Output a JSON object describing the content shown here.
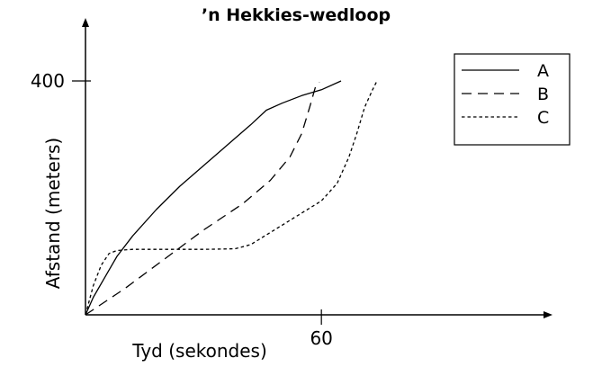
{
  "chart_data": {
    "type": "line",
    "title": "’n Hekkies-wedloop",
    "xlabel": "Tyd (sekondes)",
    "ylabel": "Afstand (meters)",
    "xlim": [
      0,
      92
    ],
    "ylim": [
      0,
      400
    ],
    "xticks": [
      {
        "value": 60,
        "label": "60"
      }
    ],
    "yticks": [
      {
        "value": 400,
        "label": "400"
      }
    ],
    "legend_position": "top-right",
    "grid": false,
    "series": [
      {
        "name": "A",
        "style": "solid",
        "points": [
          [
            0,
            0
          ],
          [
            2,
            30
          ],
          [
            5,
            65
          ],
          [
            8,
            100
          ],
          [
            12,
            135
          ],
          [
            18,
            180
          ],
          [
            24,
            220
          ],
          [
            30,
            255
          ],
          [
            36,
            290
          ],
          [
            42,
            325
          ],
          [
            46,
            350
          ],
          [
            50,
            362
          ],
          [
            55,
            375
          ],
          [
            60,
            385
          ],
          [
            65,
            400
          ]
        ]
      },
      {
        "name": "B",
        "style": "dash",
        "points": [
          [
            0,
            0
          ],
          [
            10,
            45
          ],
          [
            20,
            95
          ],
          [
            30,
            145
          ],
          [
            40,
            190
          ],
          [
            47,
            230
          ],
          [
            52,
            270
          ],
          [
            55,
            310
          ],
          [
            57,
            355
          ],
          [
            58.5,
            390
          ],
          [
            59.5,
            398
          ]
        ]
      },
      {
        "name": "C",
        "style": "dot",
        "points": [
          [
            0,
            0
          ],
          [
            2,
            50
          ],
          [
            4,
            85
          ],
          [
            6,
            105
          ],
          [
            8,
            110
          ],
          [
            12,
            112
          ],
          [
            20,
            112
          ],
          [
            30,
            112
          ],
          [
            38,
            113
          ],
          [
            42,
            120
          ],
          [
            48,
            145
          ],
          [
            54,
            170
          ],
          [
            60,
            195
          ],
          [
            64,
            225
          ],
          [
            67,
            270
          ],
          [
            69,
            310
          ],
          [
            71,
            355
          ],
          [
            73,
            385
          ],
          [
            74,
            398
          ]
        ]
      }
    ]
  }
}
